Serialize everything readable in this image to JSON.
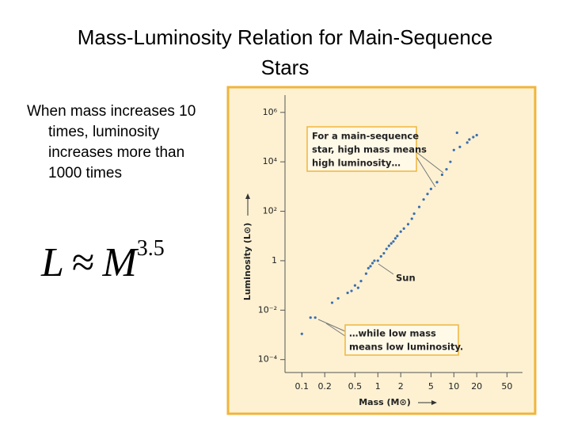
{
  "title": "Mass-Luminosity Relation for Main-Sequence Stars",
  "bullet": "When mass increases 10 times, luminosity increases more than 1000 times",
  "formula": {
    "lhs": "L",
    "op": "≈",
    "rhs": "M",
    "exponent": "3.5"
  },
  "chart_data": {
    "type": "scatter",
    "xlabel": "Mass (M⊙)",
    "ylabel": "Luminosity (L⊙)",
    "xscale": "log",
    "yscale": "log",
    "color": "#3a6fb0",
    "xlim": [
      0.06,
      80
    ],
    "ylim": [
      3e-05,
      5000000
    ],
    "xticks": [
      0.1,
      0.2,
      0.5,
      1,
      2,
      5,
      10,
      20,
      50
    ],
    "yticks": [
      {
        "value": 0.0001,
        "label": "10⁻⁴"
      },
      {
        "value": 0.01,
        "label": "10⁻²"
      },
      1,
      {
        "value": 100,
        "label": "10²"
      },
      {
        "value": 10000,
        "label": "10⁴"
      },
      {
        "value": 1000000,
        "label": "10⁶"
      }
    ],
    "x": [
      0.1,
      0.13,
      0.15,
      0.25,
      0.3,
      0.4,
      0.45,
      0.5,
      0.55,
      0.6,
      0.7,
      0.75,
      0.8,
      0.85,
      0.9,
      1,
      1.1,
      1.2,
      1.3,
      1.4,
      1.5,
      1.6,
      1.7,
      1.8,
      2,
      2.2,
      2.5,
      2.8,
      3,
      3.5,
      4,
      4.5,
      5,
      6,
      7,
      8,
      9,
      10,
      11,
      12,
      15,
      16,
      18,
      20
    ],
    "values": [
      0.0011,
      0.005,
      0.005,
      0.02,
      0.03,
      0.05,
      0.06,
      0.1,
      0.08,
      0.15,
      0.3,
      0.5,
      0.6,
      0.8,
      1,
      1,
      1.5,
      2,
      3,
      4,
      5,
      6,
      8,
      10,
      15,
      20,
      30,
      50,
      80,
      150,
      300,
      500,
      800,
      1500,
      3000,
      5000,
      10000,
      30000,
      150000,
      40000,
      60000,
      80000,
      100000,
      120000
    ],
    "annotations": [
      [
        "For a main-sequence",
        "star, high mass means",
        "high luminosity…"
      ],
      [
        "Sun"
      ],
      [
        "…while low mass",
        "means low luminosity."
      ]
    ]
  }
}
